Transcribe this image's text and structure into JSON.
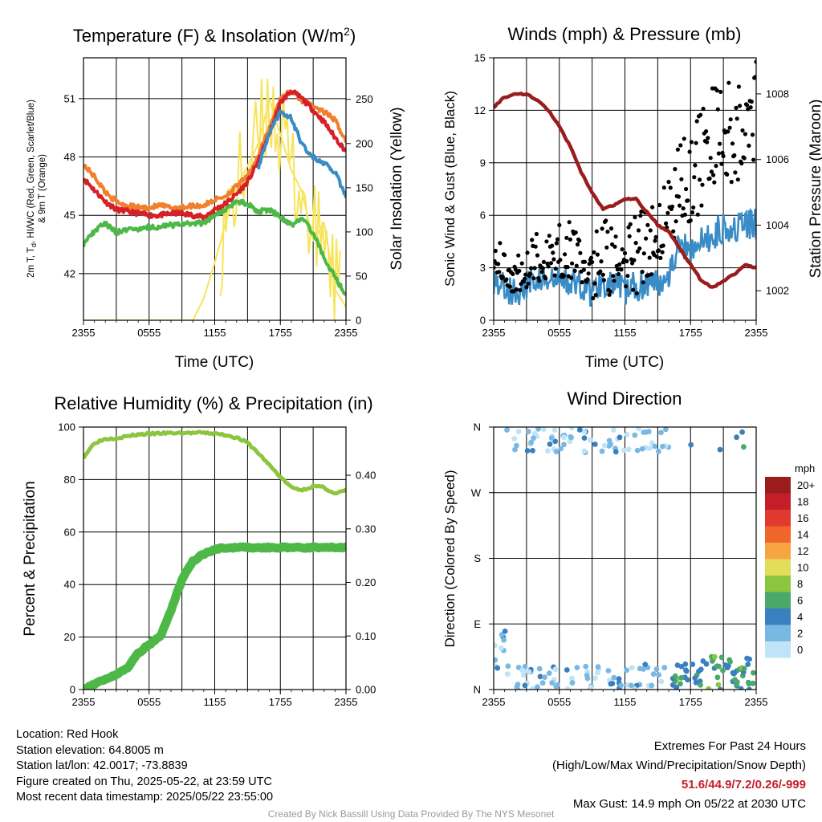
{
  "chart_data": [
    {
      "type": "line",
      "title": "Temperature (F) & Insolation (W/m²)",
      "xlabel": "Time (UTC)",
      "ylabel_left": "2m T, Td, HI/WC (Red, Green, Scarlet/Blue) & 9m T (Orange)",
      "ylabel_right": "Solar Insolation (Yellow)",
      "x_ticks": [
        "2355",
        "0555",
        "1155",
        "1755",
        "2355"
      ],
      "y_ticks_left": [
        42,
        45,
        48,
        51
      ],
      "y_ticks_right": [
        0,
        50,
        100,
        150,
        200,
        250
      ],
      "ylim_left": [
        39.6,
        53.1
      ],
      "ylim_right": [
        0,
        297
      ],
      "x_hours": [
        0,
        1,
        2,
        3,
        4,
        5,
        6,
        7,
        8,
        9,
        10,
        11,
        12,
        13,
        14,
        15,
        16,
        17,
        18,
        19,
        20,
        21,
        22,
        23,
        24
      ],
      "series": [
        {
          "name": "2m T (Red)",
          "color": "#d62027",
          "axis": "left",
          "values": [
            46.9,
            46.3,
            45.7,
            45.3,
            45.2,
            45.1,
            45.0,
            45.0,
            45.1,
            45.1,
            45.0,
            44.9,
            45.3,
            45.6,
            46.1,
            46.7,
            47.8,
            49.2,
            50.8,
            51.4,
            51.0,
            50.4,
            49.8,
            49.0,
            48.3
          ]
        },
        {
          "name": "9m T (Orange)",
          "color": "#f07f2e",
          "axis": "left",
          "values": [
            47.6,
            47.0,
            46.2,
            45.7,
            45.5,
            45.4,
            45.4,
            45.5,
            45.4,
            45.4,
            45.5,
            45.5,
            45.8,
            46.0,
            46.5,
            47.0,
            48.1,
            49.5,
            51.0,
            51.4,
            50.9,
            50.6,
            50.3,
            49.9,
            48.8
          ]
        },
        {
          "name": "HI/WC (Blue)",
          "color": "#3a8cc6",
          "axis": "left",
          "values": [
            null,
            null,
            null,
            null,
            null,
            null,
            null,
            null,
            null,
            null,
            null,
            null,
            null,
            null,
            null,
            null,
            47.5,
            49.2,
            50.3,
            50.0,
            48.6,
            48.0,
            47.7,
            47.2,
            46.0
          ]
        },
        {
          "name": "Td (Green)",
          "color": "#4db848",
          "axis": "left",
          "values": [
            43.5,
            44.2,
            44.6,
            44.1,
            44.3,
            44.3,
            44.4,
            44.4,
            44.5,
            44.5,
            44.6,
            44.6,
            45.0,
            45.3,
            45.7,
            45.6,
            45.2,
            45.3,
            44.9,
            44.5,
            44.8,
            44.1,
            42.8,
            41.8,
            40.9
          ]
        },
        {
          "name": "Solar Insolation (Yellow)",
          "color": "#f7e45a",
          "axis": "right",
          "values": [
            0,
            0,
            0,
            0,
            0,
            0,
            0,
            0,
            0,
            0,
            0,
            25,
            65,
            110,
            150,
            175,
            200,
            250,
            210,
            170,
            145,
            90,
            110,
            35,
            15
          ]
        }
      ]
    },
    {
      "type": "line",
      "title": "Winds (mph) & Pressure (mb)",
      "xlabel": "Time (UTC)",
      "ylabel_left": "Sonic Wind & Gust (Blue, Black)",
      "ylabel_right": "Station Pressure (Maroon)",
      "x_ticks": [
        "2355",
        "0555",
        "1155",
        "1755",
        "2355"
      ],
      "y_ticks_left": [
        0,
        3,
        6,
        9,
        12,
        15
      ],
      "y_ticks_right": [
        1002,
        1004,
        1006,
        1008
      ],
      "ylim_left": [
        0,
        15
      ],
      "ylim_right": [
        1001.1,
        1009.1
      ],
      "x_hours": [
        0,
        1,
        2,
        3,
        4,
        5,
        6,
        7,
        8,
        9,
        10,
        11,
        12,
        13,
        14,
        15,
        16,
        17,
        18,
        19,
        20,
        21,
        22,
        23,
        24
      ],
      "series": [
        {
          "name": "Sonic Wind (Blue)",
          "color": "#3a8cc6",
          "axis": "left",
          "values": [
            2.4,
            1.9,
            1.5,
            1.9,
            2.4,
            2.1,
            2.3,
            2.2,
            2.0,
            1.6,
            2.3,
            1.9,
            1.7,
            1.9,
            2.2,
            2.1,
            2.8,
            4.3,
            4.2,
            4.4,
            4.8,
            5.4,
            5.3,
            5.4,
            5.5
          ]
        },
        {
          "name": "Gust (Black)",
          "color": "#000000",
          "axis": "left",
          "values": [
            4.0,
            3.2,
            2.6,
            3.0,
            3.6,
            3.4,
            4.0,
            3.9,
            3.6,
            3.1,
            3.8,
            3.3,
            3.2,
            3.6,
            4.3,
            5.5,
            6.7,
            7.9,
            8.4,
            9.2,
            10.4,
            11.0,
            11.1,
            11.5,
            11.8
          ]
        },
        {
          "name": "Station Pressure (Maroon)",
          "color": "#9b1c1c",
          "axis": "right",
          "values": [
            1007.6,
            1007.9,
            1008.0,
            1008.0,
            1007.8,
            1007.5,
            1007.0,
            1006.4,
            1005.6,
            1005.0,
            1004.5,
            1004.6,
            1004.8,
            1004.8,
            1004.4,
            1004.0,
            1003.8,
            1003.3,
            1002.8,
            1002.3,
            1002.1,
            1002.3,
            1002.5,
            1002.8,
            1002.7
          ]
        }
      ]
    },
    {
      "type": "line",
      "title": "Relative Humidity (%) & Precipitation (in)",
      "xlabel": "",
      "ylabel_left": "Percent & Precipitation",
      "ylabel_right": "",
      "x_ticks": [
        "2355",
        "0555",
        "1155",
        "1755",
        "2355"
      ],
      "y_ticks_left": [
        0,
        20,
        40,
        60,
        80,
        100
      ],
      "y_ticks_right": [
        "0.00",
        "0.10",
        "0.20",
        "0.30",
        "0.40"
      ],
      "ylim_left": [
        0,
        100
      ],
      "ylim_right": [
        0,
        0.49
      ],
      "x_hours": [
        0,
        1,
        2,
        3,
        4,
        5,
        6,
        7,
        8,
        9,
        10,
        11,
        12,
        13,
        14,
        15,
        16,
        17,
        18,
        19,
        20,
        21,
        22,
        23,
        24
      ],
      "series": [
        {
          "name": "Relative Humidity",
          "color": "#8cc63f",
          "axis": "left",
          "values": [
            88.5,
            94.0,
            95.5,
            95.8,
            96.5,
            97.2,
            97.4,
            97.6,
            97.7,
            97.7,
            97.8,
            97.8,
            97.5,
            97.0,
            96.0,
            94.0,
            90.0,
            85.5,
            81.0,
            77.0,
            76.0,
            77.5,
            77.0,
            74.5,
            76.0
          ]
        },
        {
          "name": "Precipitation",
          "color": "#4db848",
          "axis": "right",
          "values": [
            0.0,
            0.01,
            0.02,
            0.028,
            0.04,
            0.068,
            0.084,
            0.098,
            0.148,
            0.205,
            0.24,
            0.253,
            0.262,
            0.265,
            0.265,
            0.265,
            0.265,
            0.265,
            0.265,
            0.265,
            0.265,
            0.265,
            0.265,
            0.265,
            0.265
          ]
        }
      ]
    },
    {
      "type": "scatter",
      "title": "Wind Direction",
      "xlabel": "",
      "ylabel_left": "Direction (Colored By Speed)",
      "x_ticks": [
        "2355",
        "0555",
        "1155",
        "1755",
        "2355"
      ],
      "y_ticks_left": [
        "N",
        "E",
        "S",
        "W",
        "N"
      ],
      "ylim_left": [
        0,
        360
      ],
      "legend_title": "mph",
      "legend_labels": [
        "20+",
        "18",
        "16",
        "14",
        "12",
        "10",
        "8",
        "6",
        "4",
        "2",
        "0"
      ],
      "legend_colors": [
        "#9b1c1c",
        "#c41e2a",
        "#e0392e",
        "#f06529",
        "#f7a541",
        "#e3de5a",
        "#8cc63f",
        "#4aa86a",
        "#3a7fbf",
        "#7ab8e4",
        "#bfe3f7"
      ],
      "points_summary": "Directions cluster near north (0–30° and 330–360°) throughout the period, with speeds mostly 0–4 mph before 1755 and 4–8 mph afterward."
    }
  ],
  "station": {
    "location": "Location: Red Hook",
    "elevation": "Station elevation: 64.8005 m",
    "latlon": "Station lat/lon: 42.0017; -73.8839",
    "created": "Figure created on Thu, 2025-05-22, at 23:59 UTC",
    "recent": "Most recent data timestamp: 2025/05/22 23:55:00"
  },
  "extremes": {
    "title": "Extremes For Past 24 Hours",
    "subtitle": "(High/Low/Max Wind/Precipitation/Snow Depth)",
    "values": "51.6/44.9/7.2/0.26/-999",
    "gust": "Max Gust: 14.9 mph On 05/22 at 2030 UTC"
  },
  "credit": "Created By Nick Bassill Using Data Provided By The NYS Mesonet"
}
